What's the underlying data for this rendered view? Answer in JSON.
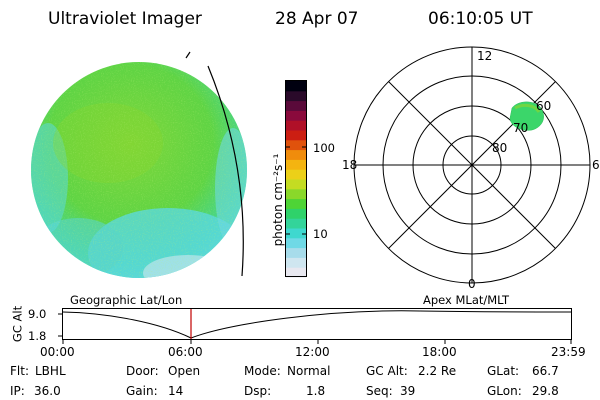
{
  "header": {
    "title": "Ultraviolet Imager",
    "date": "28 Apr 07",
    "time": "06:10:05 UT"
  },
  "colorbar": {
    "label": "photon cm⁻²s⁻¹",
    "ticks": [
      "100",
      "10"
    ],
    "colors": [
      "#e8e8f0",
      "#cfe6f0",
      "#a7dceb",
      "#6fd9e6",
      "#3fd8cf",
      "#33d49a",
      "#2fd26a",
      "#4ed436",
      "#8ad82a",
      "#c4dc22",
      "#ecd018",
      "#f4b410",
      "#f08c0c",
      "#e0520c",
      "#cc1e12",
      "#b01028",
      "#8a0a3c",
      "#5a0a3a",
      "#2a0a2a",
      "#000010"
    ]
  },
  "polar": {
    "mlt_labels": [
      "12",
      "6",
      "0",
      "18"
    ],
    "lat_labels": [
      "60",
      "70",
      "80"
    ]
  },
  "timeline": {
    "axis_title": "GC Alt",
    "y_ticks": [
      "9.0",
      "1.8"
    ],
    "left_label": "Geographic Lat/Lon",
    "right_label": "Apex MLat/MLT",
    "x_ticks": [
      "00:00",
      "06:00",
      "12:00",
      "18:00",
      "23:59"
    ]
  },
  "info": {
    "flt_label": "Flt:",
    "flt_value": "LBHL",
    "ip_label": "IP:",
    "ip_value": "36.0",
    "door_label": "Door:",
    "door_value": "Open",
    "gain_label": "Gain:",
    "gain_value": "14",
    "mode_label": "Mode:",
    "mode_value": "Normal",
    "dsp_label": "Dsp:",
    "dsp_value": "1.8",
    "gcalt_label": "GC Alt:",
    "gcalt_value": "2.2 Re",
    "seq_label": "Seq:",
    "seq_value": "39",
    "glat_label": "GLat:",
    "glat_value": "66.7",
    "glon_label": "GLon:",
    "glon_value": "29.8"
  }
}
